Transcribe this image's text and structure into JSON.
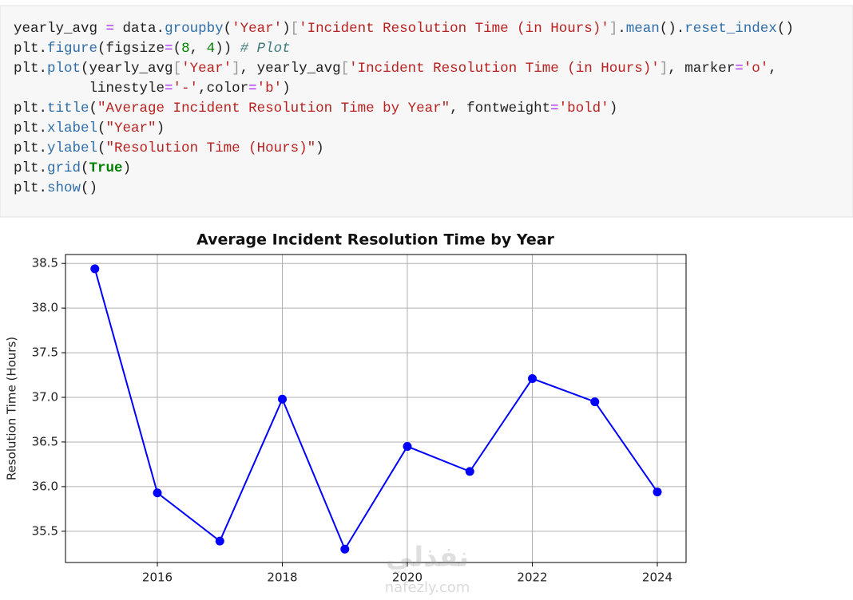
{
  "code": {
    "color": "#212121",
    "lines": [
      [
        {
          "text": "yearly_avg "
        },
        {
          "text": "=",
          "color": "#aa22ff"
        },
        {
          "text": " data."
        },
        {
          "text": "groupby",
          "color": "#2f6ea8"
        },
        {
          "text": "("
        },
        {
          "text": "'Year'",
          "color": "#ba2121"
        },
        {
          "text": ")"
        },
        {
          "text": "[",
          "color": "#999999"
        },
        {
          "text": "'Incident Resolution Time (in Hours)'",
          "color": "#ba2121"
        },
        {
          "text": "]",
          "color": "#999999"
        },
        {
          "text": "."
        },
        {
          "text": "mean",
          "color": "#2f6ea8"
        },
        {
          "text": "()."
        },
        {
          "text": "reset_index",
          "color": "#2f6ea8"
        },
        {
          "text": "()"
        }
      ],
      [
        {
          "text": "plt."
        },
        {
          "text": "figure",
          "color": "#2f6ea8"
        },
        {
          "text": "(figsize"
        },
        {
          "text": "=",
          "color": "#aa22ff"
        },
        {
          "text": "("
        },
        {
          "text": "8",
          "color": "#008000"
        },
        {
          "text": ", "
        },
        {
          "text": "4",
          "color": "#008000"
        },
        {
          "text": ")) "
        },
        {
          "text": "# Plot",
          "color": "#3d7b7b",
          "style": "italic"
        }
      ],
      [
        {
          "text": "plt."
        },
        {
          "text": "plot",
          "color": "#2f6ea8"
        },
        {
          "text": "(yearly_avg"
        },
        {
          "text": "[",
          "color": "#999999"
        },
        {
          "text": "'Year'",
          "color": "#ba2121"
        },
        {
          "text": "]",
          "color": "#999999"
        },
        {
          "text": ", yearly_avg"
        },
        {
          "text": "[",
          "color": "#999999"
        },
        {
          "text": "'Incident Resolution Time (in Hours)'",
          "color": "#ba2121"
        },
        {
          "text": "]",
          "color": "#999999"
        },
        {
          "text": ", marker"
        },
        {
          "text": "=",
          "color": "#aa22ff"
        },
        {
          "text": "'o'",
          "color": "#ba2121"
        },
        {
          "text": ","
        }
      ],
      [
        {
          "text": "         linestyle"
        },
        {
          "text": "=",
          "color": "#aa22ff"
        },
        {
          "text": "'-'",
          "color": "#ba2121"
        },
        {
          "text": ",color"
        },
        {
          "text": "=",
          "color": "#aa22ff"
        },
        {
          "text": "'b'",
          "color": "#ba2121"
        },
        {
          "text": ")"
        }
      ],
      [
        {
          "text": "plt."
        },
        {
          "text": "title",
          "color": "#2f6ea8"
        },
        {
          "text": "("
        },
        {
          "text": "\"Average Incident Resolution Time by Year\"",
          "color": "#ba2121"
        },
        {
          "text": ", fontweight"
        },
        {
          "text": "=",
          "color": "#aa22ff"
        },
        {
          "text": "'bold'",
          "color": "#ba2121"
        },
        {
          "text": ")"
        }
      ],
      [
        {
          "text": "plt."
        },
        {
          "text": "xlabel",
          "color": "#2f6ea8"
        },
        {
          "text": "("
        },
        {
          "text": "\"Year\"",
          "color": "#ba2121"
        },
        {
          "text": ")"
        }
      ],
      [
        {
          "text": "plt."
        },
        {
          "text": "ylabel",
          "color": "#2f6ea8"
        },
        {
          "text": "("
        },
        {
          "text": "\"Resolution Time (Hours)\"",
          "color": "#ba2121"
        },
        {
          "text": ")"
        }
      ],
      [
        {
          "text": "plt."
        },
        {
          "text": "grid",
          "color": "#2f6ea8"
        },
        {
          "text": "("
        },
        {
          "text": "True",
          "color": "#008000",
          "style": "bold"
        },
        {
          "text": ")"
        }
      ],
      [
        {
          "text": "plt."
        },
        {
          "text": "show",
          "color": "#2f6ea8"
        },
        {
          "text": "()"
        }
      ]
    ]
  },
  "chart_data": {
    "type": "line",
    "title": "Average Incident Resolution Time by Year",
    "ylabel": "Resolution Time (Hours)",
    "x": [
      2015,
      2016,
      2017,
      2018,
      2019,
      2020,
      2021,
      2022,
      2023,
      2024
    ],
    "series": [
      {
        "color": "#0000ff",
        "marker": "o",
        "values": [
          38.44,
          35.93,
          35.39,
          36.98,
          35.3,
          36.45,
          36.17,
          37.21,
          36.95,
          35.94
        ]
      }
    ],
    "xlim": [
      2014.53,
      2024.46
    ],
    "xticks": [
      2016,
      2018,
      2020,
      2022,
      2024
    ],
    "ylim": [
      35.15,
      38.6
    ],
    "yticks": [
      35.5,
      {
        "value": 36,
        "label": "36.0"
      },
      36.5,
      {
        "value": 37,
        "label": "37.0"
      },
      37.5,
      {
        "value": 38,
        "label": "38.0"
      },
      38.5
    ],
    "grid": true
  },
  "watermark": {
    "arabic": "نفذلي",
    "latin": "nafezly.com"
  }
}
